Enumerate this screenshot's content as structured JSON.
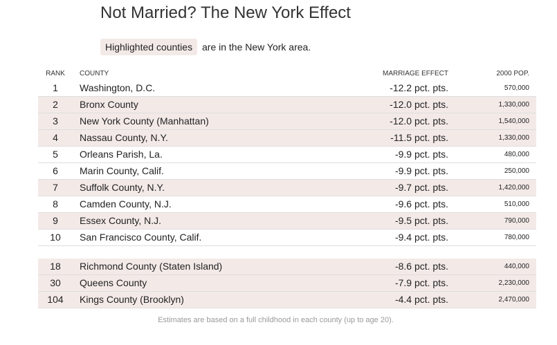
{
  "header": {
    "title": "Not Married? The New York Effect"
  },
  "legend": {
    "highlight_label": "Highlighted counties",
    "text": "are in the New York area.",
    "highlight_color": "#f3eae8"
  },
  "table": {
    "columns": [
      "RANK",
      "COUNTY",
      "MARRIAGE EFFECT",
      "2000 POP."
    ],
    "groups": [
      {
        "rows": [
          {
            "rank": "1",
            "county": "Washington, D.C.",
            "effect": "-12.2 pct. pts.",
            "pop": "570,000",
            "highlighted": false
          },
          {
            "rank": "2",
            "county": "Bronx County",
            "effect": "-12.0 pct. pts.",
            "pop": "1,330,000",
            "highlighted": true
          },
          {
            "rank": "3",
            "county": "New York County (Manhattan)",
            "effect": "-12.0 pct. pts.",
            "pop": "1,540,000",
            "highlighted": true
          },
          {
            "rank": "4",
            "county": "Nassau County, N.Y.",
            "effect": "-11.5 pct. pts.",
            "pop": "1,330,000",
            "highlighted": true
          },
          {
            "rank": "5",
            "county": "Orleans Parish, La.",
            "effect": "-9.9 pct. pts.",
            "pop": "480,000",
            "highlighted": false
          },
          {
            "rank": "6",
            "county": "Marin County, Calif.",
            "effect": "-9.9 pct. pts.",
            "pop": "250,000",
            "highlighted": false
          },
          {
            "rank": "7",
            "county": "Suffolk County, N.Y.",
            "effect": "-9.7 pct. pts.",
            "pop": "1,420,000",
            "highlighted": true
          },
          {
            "rank": "8",
            "county": "Camden County, N.J.",
            "effect": "-9.6 pct. pts.",
            "pop": "510,000",
            "highlighted": false
          },
          {
            "rank": "9",
            "county": "Essex County, N.J.",
            "effect": "-9.5 pct. pts.",
            "pop": "790,000",
            "highlighted": true
          },
          {
            "rank": "10",
            "county": "San Francisco County, Calif.",
            "effect": "-9.4 pct. pts.",
            "pop": "780,000",
            "highlighted": false
          }
        ]
      },
      {
        "rows": [
          {
            "rank": "18",
            "county": "Richmond County (Staten Island)",
            "effect": "-8.6 pct. pts.",
            "pop": "440,000",
            "highlighted": true
          },
          {
            "rank": "30",
            "county": "Queens County",
            "effect": "-7.9 pct. pts.",
            "pop": "2,230,000",
            "highlighted": true
          },
          {
            "rank": "104",
            "county": "Kings County (Brooklyn)",
            "effect": "-4.4 pct. pts.",
            "pop": "2,470,000",
            "highlighted": true
          }
        ]
      }
    ]
  },
  "footer": {
    "note": "Estimates are based on a full childhood in each county (up to age 20)."
  }
}
